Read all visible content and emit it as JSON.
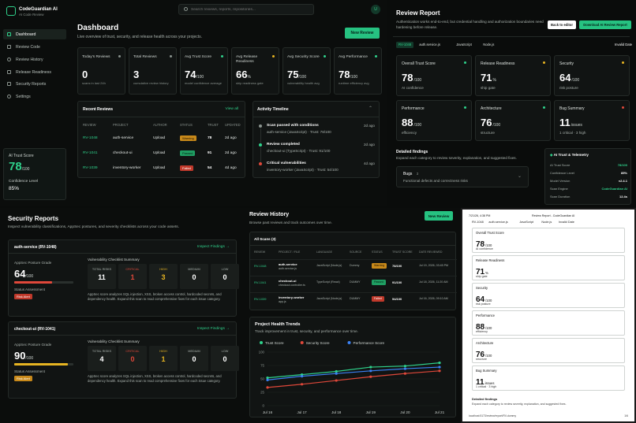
{
  "app": {
    "name": "CodeGuardian AI",
    "subtitle": "AI Code Review",
    "avatar": "U"
  },
  "search": {
    "placeholder": "Search reviews, reports, repositories..."
  },
  "sidebar": {
    "items": [
      {
        "label": "Dashboard",
        "icon": "grid-icon"
      },
      {
        "label": "Review Code",
        "icon": "code-icon"
      },
      {
        "label": "Review History",
        "icon": "history-icon"
      },
      {
        "label": "Release Readiness",
        "icon": "rocket-icon"
      },
      {
        "label": "Security Reports",
        "icon": "shield-icon"
      },
      {
        "label": "Settings",
        "icon": "gear-icon"
      }
    ],
    "trust_card": {
      "label": "AI Trust Score",
      "value": "78",
      "unit": "/100",
      "confidence_label": "Confidence Level",
      "confidence_value": "85%"
    }
  },
  "dashboard": {
    "title": "Dashboard",
    "subtitle": "Live overview of trust, security, and release health across your projects.",
    "new_review": "New Review",
    "stats": [
      {
        "label": "Today's Reviews",
        "value": "0",
        "unit": "",
        "note": "scans in last 24h",
        "dot": "#8a938e"
      },
      {
        "label": "Total Reviews",
        "value": "3",
        "unit": "",
        "note": "cumulative review history",
        "dot": "#8a938e"
      },
      {
        "label": "Avg Trust Score",
        "value": "74",
        "unit": "/100",
        "note": "model confidence average",
        "dot": "#2fd18b"
      },
      {
        "label": "Avg Release Readiness",
        "value": "66",
        "unit": "%",
        "note": "ship readiness gate",
        "dot": "#e6b422"
      },
      {
        "label": "Avg Security Score",
        "value": "75",
        "unit": "/100",
        "note": "vulnerability health avg",
        "dot": "#2fd18b"
      },
      {
        "label": "Avg Performance",
        "value": "78",
        "unit": "/100",
        "note": "runtime efficiency avg",
        "dot": "#2fd18b"
      }
    ],
    "recent": {
      "title": "Recent Reviews",
      "view_all": "View all",
      "headers": [
        "REVIEW",
        "PROJECT",
        "AUTHOR",
        "STATUS",
        "TRUST",
        "UPDATED"
      ],
      "rows": [
        {
          "id": "RV-1048",
          "project": "auth-service",
          "author": "Upload",
          "status": "Warning",
          "kind": "warn",
          "trust": "78",
          "updated": "2d ago"
        },
        {
          "id": "RV-1041",
          "project": "checkout-ui",
          "author": "Upload",
          "status": "Passed",
          "kind": "pass",
          "trust": "91",
          "updated": "2d ago"
        },
        {
          "id": "RV-1039",
          "project": "inventory-worker",
          "author": "Upload",
          "status": "Failed",
          "kind": "fail",
          "trust": "54",
          "updated": "4d ago"
        }
      ]
    },
    "activity": {
      "title": "Activity Timeline",
      "items": [
        {
          "title": "Scan passed with conditions",
          "sub": "auth-service (JavaScript) · Trust: 78/100",
          "time": "2d ago",
          "color": "#8a938e"
        },
        {
          "title": "Review completed",
          "sub": "checkout-ui (TypeScript) · Trust: 91/100",
          "time": "2d ago",
          "color": "#2fd18b"
        },
        {
          "title": "Critical vulnerabilities",
          "sub": "inventory-worker (JavaScript) · Trust: 54/100",
          "time": "4d ago",
          "color": "#e0483a"
        }
      ]
    }
  },
  "review_report": {
    "title": "Review Report",
    "desc": "Authentication works end-to-end, but credential handling and authorization boundaries need hardening before release.",
    "back": "Back to editor",
    "download": "Download AI Review Report",
    "invalid_date": "Invalid Date",
    "chips": [
      "RV-1048",
      "auth.service.js",
      "JavaScript",
      "Node.js"
    ],
    "metrics": [
      {
        "label": "Overall Trust Score",
        "value": "78",
        "unit": "/100",
        "note": "AI confidence",
        "dot": "#2fd18b"
      },
      {
        "label": "Release Readiness",
        "value": "71",
        "unit": "%",
        "note": "ship gate",
        "dot": "#e6b422"
      },
      {
        "label": "Security",
        "value": "64",
        "unit": "/100",
        "note": "risk posture",
        "dot": "#e6b422"
      },
      {
        "label": "Performance",
        "value": "88",
        "unit": "/100",
        "note": "efficiency",
        "dot": "#2fd18b"
      },
      {
        "label": "Architecture",
        "value": "76",
        "unit": "/100",
        "note": "structure",
        "dot": "#2fd18b"
      },
      {
        "label": "Bug Summary",
        "value": "11",
        "unit": "issues",
        "note": "1 critical · 3 high",
        "dot": "#e0483a"
      }
    ],
    "detailed": {
      "title": "Detailed findings",
      "desc": "Expand each category to review severity, explanation, and suggested fixes."
    },
    "bugs": {
      "label": "Bugs",
      "count": "3",
      "desc": "Functional defects and correctness risks"
    },
    "telemetry": {
      "title": "AI Trust & Telemetry",
      "rows": [
        {
          "k": "AI Trust Score",
          "v": "78/100"
        },
        {
          "k": "Confidence Level",
          "v": "85%"
        },
        {
          "k": "Model Version",
          "v": "v2.4.1"
        },
        {
          "k": "Scan Engine",
          "v": "CodeGuardian AI"
        },
        {
          "k": "Scan Duration",
          "v": "12.4s"
        }
      ]
    }
  },
  "security": {
    "title": "Security Reports",
    "desc": "Inspect vulnerability classifications, AppSec postures, and severity checklists across your code assets.",
    "cards": [
      {
        "service": "auth-service (RV-1048)",
        "link": "Inspect Findings →",
        "posture_label": "AppSec Posture Grade",
        "posture": "64",
        "unit": "/100",
        "posture_pct": 0.64,
        "bar_color": "#e0483a",
        "status_label": "Status Assessment",
        "status": "Risk Alert",
        "status_color": "#c0392b",
        "checklist": "Vulnerability Checklist Summary",
        "risks": [
          {
            "k": "TOTAL RISKS",
            "v": "11",
            "c": "#fff"
          },
          {
            "k": "CRITICAL",
            "v": "1",
            "c": "#e0483a"
          },
          {
            "k": "HIGH",
            "v": "3",
            "c": "#e6b422"
          },
          {
            "k": "MEDIUM",
            "v": "0",
            "c": "#fff"
          },
          {
            "k": "LOW",
            "v": "0",
            "c": "#fff"
          }
        ],
        "note": "AppSec score analyzes SQL injection, XSS, broken access control, hardcoded secrets, and dependency health. Expand this scan to read comprehensive fixes for each issue category."
      },
      {
        "service": "checkout-ui (RV-1041)",
        "link": "Inspect Findings →",
        "posture_label": "AppSec Posture Grade",
        "posture": "90",
        "unit": "/100",
        "posture_pct": 0.9,
        "bar_color": "#e6b422",
        "status_label": "Status Assessment",
        "status": "Risk Alert",
        "status_color": "#c8891a",
        "checklist": "Vulnerability Checklist Summary",
        "risks": [
          {
            "k": "TOTAL RISKS",
            "v": "4",
            "c": "#fff"
          },
          {
            "k": "CRITICAL",
            "v": "0",
            "c": "#e0483a"
          },
          {
            "k": "HIGH",
            "v": "1",
            "c": "#e6b422"
          },
          {
            "k": "MEDIUM",
            "v": "0",
            "c": "#fff"
          },
          {
            "k": "LOW",
            "v": "0",
            "c": "#fff"
          }
        ],
        "note": "AppSec score analyzes SQL injection, XSS, broken access control, hardcoded secrets, and dependency health. Expand this scan to read comprehensive fixes for each issue category."
      }
    ]
  },
  "history": {
    "title": "Review History",
    "desc": "Browse past reviews and track outcomes over time.",
    "new_review": "New Review",
    "all_scans": "All Scans (3)",
    "headers": [
      "REVIEW",
      "PROJECT / FILE",
      "LANGUAGE",
      "SOURCE",
      "STATUS",
      "TRUST SCORE",
      "DATE REVIEWED"
    ],
    "rows": [
      {
        "id": "RV-1048",
        "project": "auth-service",
        "file": "auth.service.js",
        "lang": "JavaScript (Node.js)",
        "source": "Dummy",
        "status": "Warning",
        "kind": "warn",
        "trust": "78/100",
        "date": "Jul 19, 2026, 03:45 PM"
      },
      {
        "id": "RV-1041",
        "project": "checkout-ui",
        "file": "checkout.controller.ts",
        "lang": "TypeScript (React)",
        "source": "DUMMY",
        "status": "Passed",
        "kind": "pass",
        "trust": "91/100",
        "date": "Jul 18, 2026, 11:20 AM"
      },
      {
        "id": "RV-1039",
        "project": "inventory-worker",
        "file": "app.js",
        "lang": "JavaScript (Node.js)",
        "source": "DUMMY",
        "status": "Failed",
        "kind": "fail",
        "trust": "54/100",
        "date": "Jul 16, 2026, 09:10 AM"
      }
    ]
  },
  "chart_data": {
    "type": "line",
    "title": "Project Health Trends",
    "subtitle": "Track improvement in trust, security, and performance over time.",
    "categories": [
      "Jul 16",
      "Jul 17",
      "Jul 18",
      "Jul 19",
      "Jul 20",
      "Jul 21"
    ],
    "yticks": [
      "100",
      "75",
      "50",
      "25",
      "0"
    ],
    "ylim": [
      0,
      100
    ],
    "legend": "top-left",
    "series": [
      {
        "name": "Trust Score",
        "color": "#2fd18b",
        "values": [
          52,
          58,
          64,
          72,
          74,
          80
        ]
      },
      {
        "name": "Security Score",
        "color": "#e0483a",
        "values": [
          34,
          40,
          47,
          54,
          60,
          65
        ]
      },
      {
        "name": "Performance Score",
        "color": "#3b82f6",
        "values": [
          48,
          55,
          60,
          65,
          69,
          72
        ]
      }
    ]
  },
  "print_preview": {
    "date": "7/21/26, 4:38 PM",
    "title": "Review Report - CodeGuardian AI",
    "chips": [
      "RV-1048",
      "auth.service.js",
      "JavaScript",
      "Node.js",
      "Invalid Date"
    ],
    "metrics": [
      {
        "label": "Overall Trust Score",
        "value": "78",
        "unit": "/100",
        "note": "AI confidence"
      },
      {
        "label": "Release Readiness",
        "value": "71",
        "unit": "%",
        "note": "ship gate"
      },
      {
        "label": "Security",
        "value": "64",
        "unit": "/100",
        "note": "risk posture"
      },
      {
        "label": "Performance",
        "value": "88",
        "unit": "/100",
        "note": "efficiency"
      },
      {
        "label": "Architecture",
        "value": "76",
        "unit": "/100",
        "note": "structure"
      },
      {
        "label": "Bug Summary",
        "value": "11",
        "unit": "issues",
        "note": "1 critical · 3 high"
      }
    ],
    "detailed_title": "Detailed findings",
    "detailed_desc": "Expand each category to review severity, explanation, and suggested fixes.",
    "footer_url": "localhost:5173/review/report/RV-dummy",
    "page": "1/6"
  }
}
